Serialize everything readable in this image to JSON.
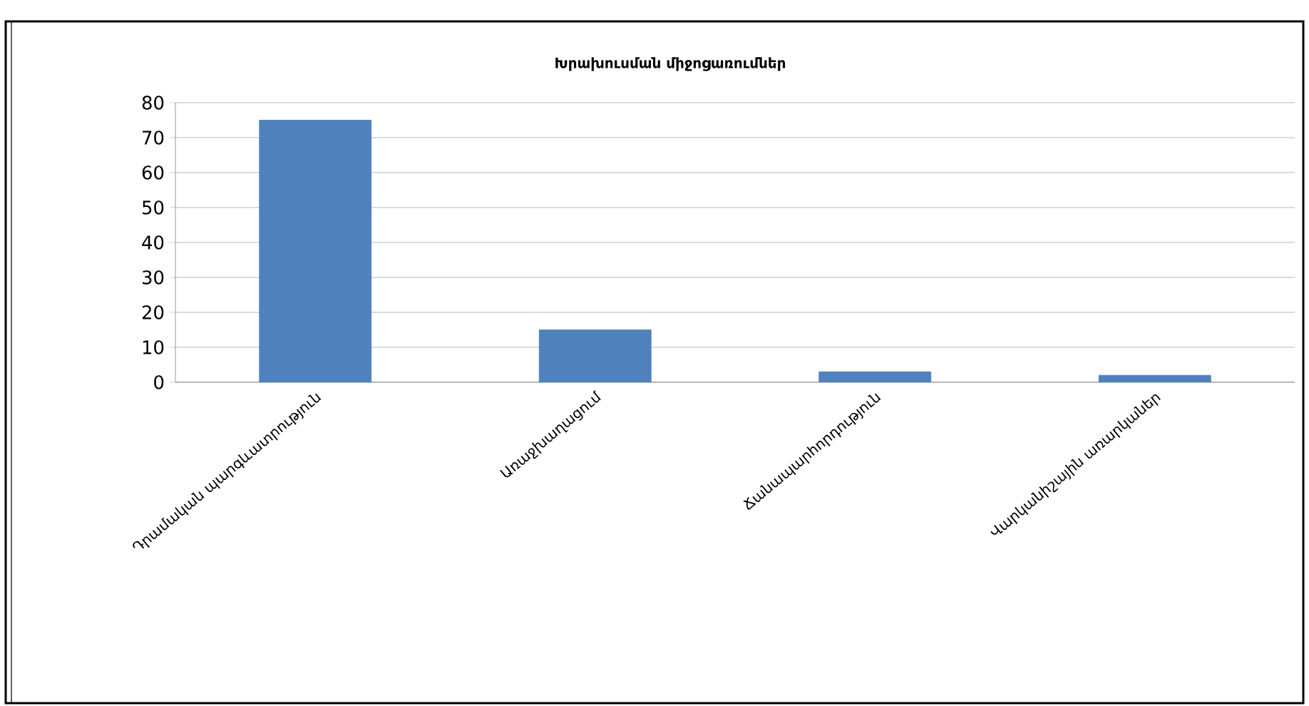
{
  "chart_data": {
    "type": "bar",
    "title": "Խրախուսման միջոցառումներ",
    "categories": [
      "Դրամական պարգևատրություն",
      "Առաջխաղացում",
      "Ճանապարհորդություն",
      "Վարկանիշային առարկաներ"
    ],
    "values": [
      75,
      15,
      3,
      2
    ],
    "color": "#4f81bd",
    "ylim": [
      0,
      80
    ],
    "yticks": [
      0,
      10,
      20,
      30,
      40,
      50,
      60,
      70,
      80
    ],
    "grid": "y"
  }
}
